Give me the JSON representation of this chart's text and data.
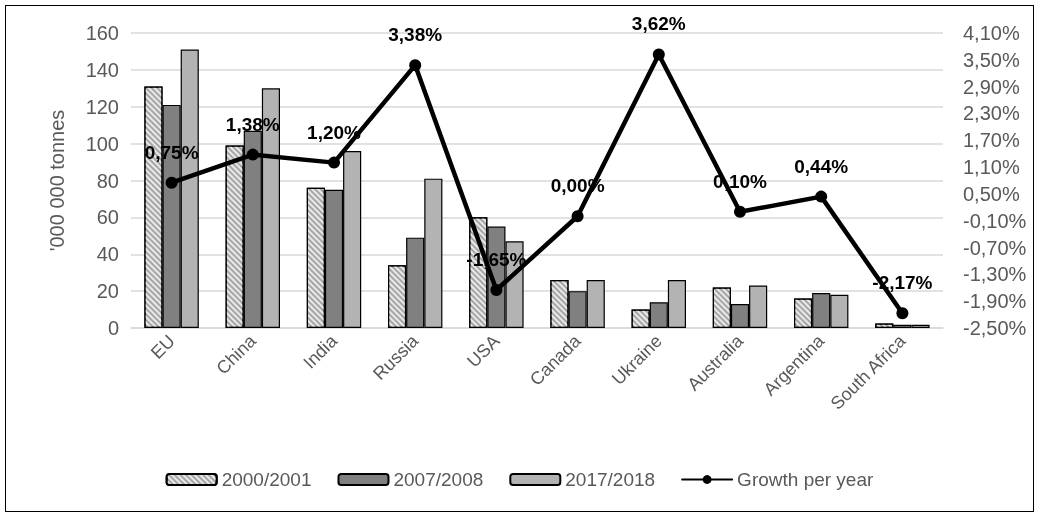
{
  "chart_data": {
    "type": "bar",
    "categories": [
      "EU",
      "China",
      "India",
      "Russia",
      "USA",
      "Canada",
      "Ukraine",
      "Australia",
      "Argentina",
      "South Africa"
    ],
    "ylabel": "'000 000 tonnes",
    "ylim": [
      0,
      160
    ],
    "yticks": [
      0,
      20,
      40,
      60,
      80,
      100,
      120,
      140,
      160
    ],
    "y2lim": [
      -2.5,
      4.1
    ],
    "y2ticks": [
      {
        "value": -2.5,
        "label": "-2,50%"
      },
      {
        "value": -1.9,
        "label": "-1,90%"
      },
      {
        "value": -1.3,
        "label": "-1,30%"
      },
      {
        "value": -0.7,
        "label": "-0,70%"
      },
      {
        "value": -0.1,
        "label": "-0,10%"
      },
      {
        "value": 0.5,
        "label": "0,50%"
      },
      {
        "value": 1.1,
        "label": "1,10%"
      },
      {
        "value": 1.7,
        "label": "1,70%"
      },
      {
        "value": 2.3,
        "label": "2,30%"
      },
      {
        "value": 2.9,
        "label": "2,90%"
      },
      {
        "value": 3.5,
        "label": "3,50%"
      },
      {
        "value": 4.1,
        "label": "4,10%"
      }
    ],
    "grid": "y",
    "legend": "bottom",
    "marker": "circle",
    "series": [
      {
        "name": "2000/2001",
        "color": "#a6a6a6",
        "values": [
          131,
          99,
          76,
          34,
          60,
          26,
          10,
          22,
          16,
          2.4
        ]
      },
      {
        "name": "2007/2008",
        "color": "#808080",
        "values": [
          121,
          107,
          75,
          49,
          55,
          20,
          14,
          13,
          19,
          1.8
        ]
      },
      {
        "name": "2017/2018",
        "color": "#b3b3b3",
        "values": [
          151,
          130,
          96,
          81,
          47,
          26,
          26,
          23,
          18,
          1.8
        ]
      },
      {
        "name": "Growth per year",
        "type": "line",
        "axis": "y2",
        "color": "#000000",
        "values": [
          0.75,
          1.38,
          1.2,
          3.38,
          -1.65,
          0,
          3.62,
          0.1,
          0.44,
          -2.17
        ],
        "value_labels": [
          "0,75%",
          "1,38%",
          "1,20%",
          "3,38%",
          "-1,65%",
          "0,00%",
          "3,62%",
          "0,10%",
          "0,44%",
          "-2,17%"
        ]
      }
    ]
  }
}
